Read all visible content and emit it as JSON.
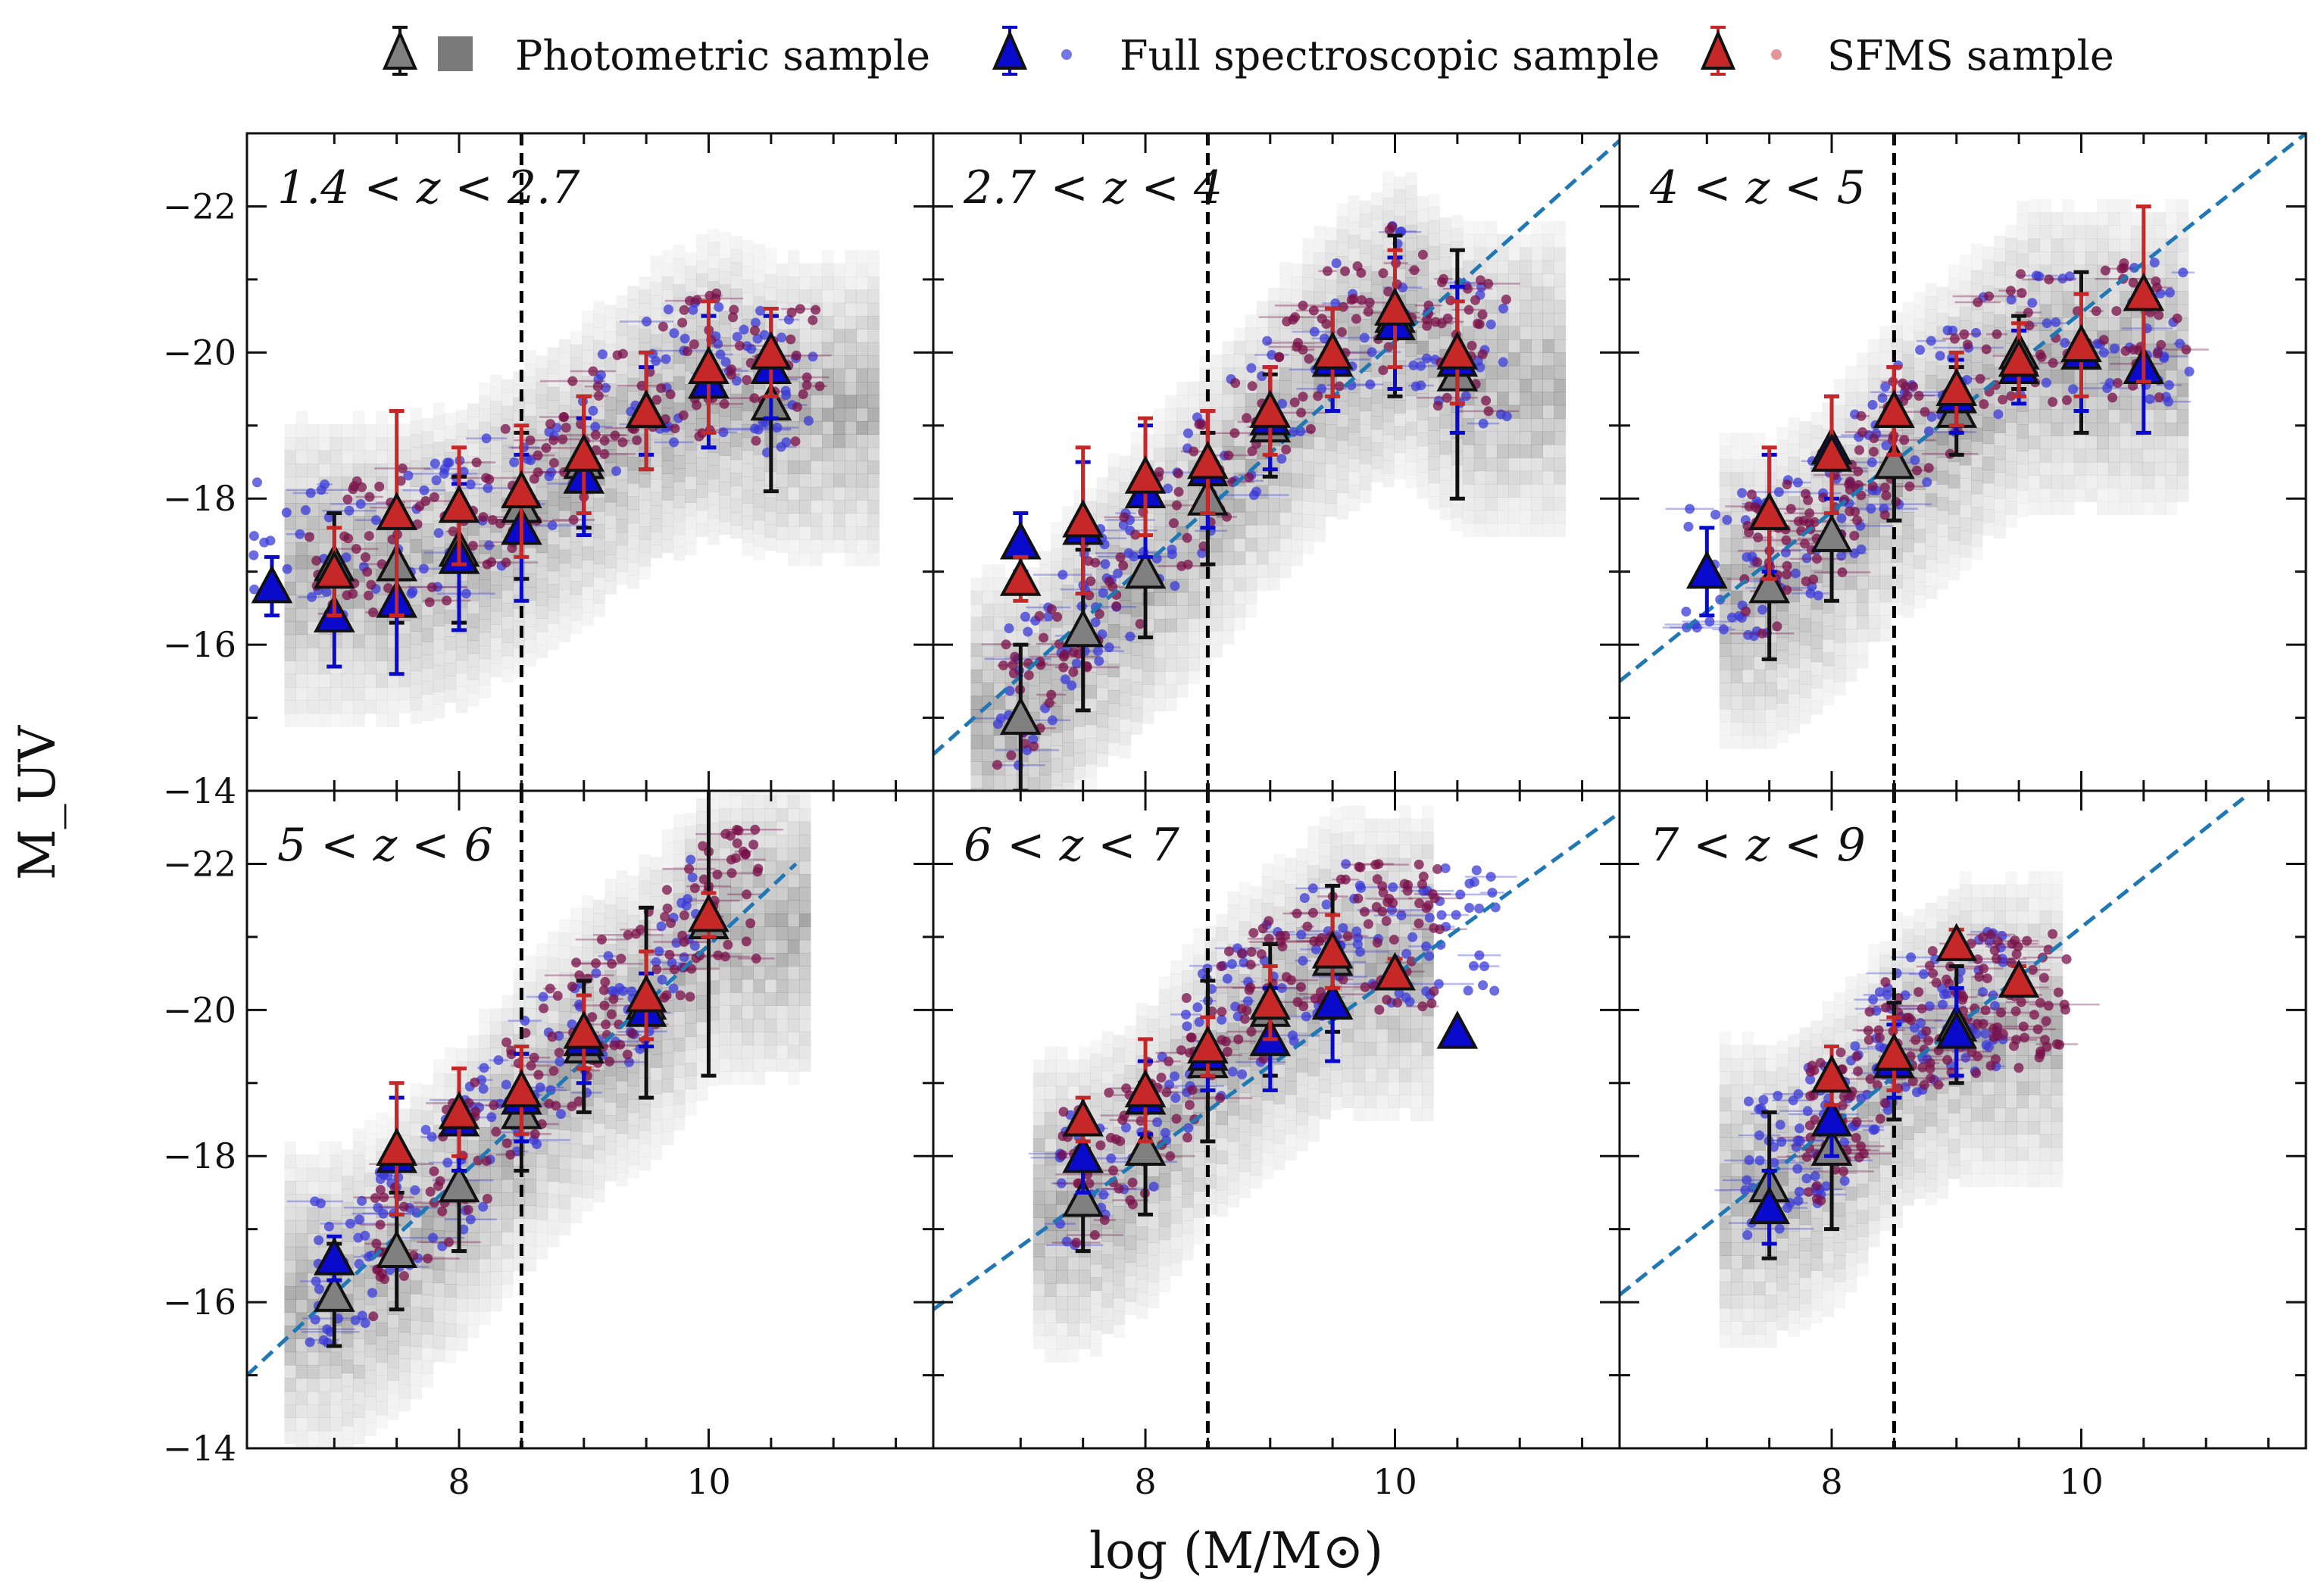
{
  "legend": [
    {
      "label": "Photometric sample",
      "color": "#808080"
    },
    {
      "label": "Full spectroscopic sample",
      "color": "#0000cc"
    },
    {
      "label": "SFMS sample",
      "color": "#c62828"
    }
  ],
  "xlabel": "log (M/M⊙)",
  "ylabel": "M_UV",
  "colors": {
    "photometric": "#808080",
    "spectroscopic": "#0a0acc",
    "sfms": "#c62828",
    "scatter_spec": "#3a3ad8",
    "scatter_sfms": "#7a1048",
    "fit": "#1f77b4",
    "cut": "#000000"
  },
  "chart_data": [
    {
      "type": "scatter",
      "title": "1.4 < z < 2.7",
      "xlim": [
        6.3,
        11.8
      ],
      "ylim": [
        -14,
        -23
      ],
      "xticks": [
        8,
        10
      ],
      "yticks": [
        -14,
        -16,
        -18,
        -20,
        -22
      ],
      "mass_cut": 8.5,
      "fit_line": null,
      "series": [
        {
          "name": "Photometric sample",
          "points": [
            [
              7.0,
              -17.1,
              0.7
            ],
            [
              7.5,
              -17.1,
              0.8
            ],
            [
              8.0,
              -17.3,
              1.0
            ],
            [
              8.5,
              -17.9,
              1.0
            ],
            [
              9.0,
              -18.5,
              0.9
            ],
            [
              9.5,
              -19.2,
              0.8
            ],
            [
              10.0,
              -19.6,
              0.9
            ],
            [
              10.5,
              -19.3,
              1.2
            ]
          ]
        },
        {
          "name": "Full spectroscopic sample",
          "points": [
            [
              6.5,
              -16.8,
              0.4
            ],
            [
              7.0,
              -16.4,
              0.7
            ],
            [
              7.5,
              -16.6,
              1.0
            ],
            [
              8.0,
              -17.2,
              1.0
            ],
            [
              8.5,
              -17.6,
              1.0
            ],
            [
              9.0,
              -18.3,
              0.8
            ],
            [
              9.5,
              -19.2,
              0.6
            ],
            [
              10.0,
              -19.6,
              0.9
            ],
            [
              10.5,
              -19.8,
              0.7
            ]
          ]
        },
        {
          "name": "SFMS sample",
          "points": [
            [
              7.0,
              -17.0,
              0.6
            ],
            [
              7.5,
              -17.8,
              1.4
            ],
            [
              8.0,
              -17.9,
              0.8
            ],
            [
              8.5,
              -18.1,
              0.9
            ],
            [
              9.0,
              -18.6,
              0.8
            ],
            [
              9.5,
              -19.2,
              0.8
            ],
            [
              10.0,
              -19.8,
              0.9
            ],
            [
              10.5,
              -20.0,
              0.6
            ]
          ]
        }
      ]
    },
    {
      "type": "scatter",
      "title": "2.7 < z < 4",
      "xlim": [
        6.3,
        11.8
      ],
      "ylim": [
        -14,
        -23
      ],
      "xticks": [
        8,
        10
      ],
      "yticks": [
        -14,
        -16,
        -18,
        -20,
        -22
      ],
      "mass_cut": 8.5,
      "fit_line": [
        [
          6.3,
          -14.5
        ],
        [
          11.8,
          -22.9
        ]
      ],
      "series": [
        {
          "name": "Photometric sample",
          "points": [
            [
              7.0,
              -15.0,
              1.0
            ],
            [
              7.5,
              -16.2,
              1.1
            ],
            [
              8.0,
              -17.0,
              0.9
            ],
            [
              8.5,
              -18.0,
              0.9
            ],
            [
              9.0,
              -19.0,
              0.7
            ],
            [
              9.5,
              -19.9,
              0.7
            ],
            [
              10.0,
              -20.5,
              1.1
            ],
            [
              10.5,
              -19.7,
              1.7
            ]
          ]
        },
        {
          "name": "Full spectroscopic sample",
          "points": [
            [
              7.0,
              -17.4,
              0.4
            ],
            [
              7.5,
              -17.6,
              0.9
            ],
            [
              8.0,
              -18.1,
              0.9
            ],
            [
              8.5,
              -18.4,
              0.8
            ],
            [
              9.0,
              -19.1,
              0.7
            ],
            [
              9.5,
              -19.9,
              0.7
            ],
            [
              10.0,
              -20.4,
              0.9
            ],
            [
              10.5,
              -19.9,
              1.0
            ]
          ]
        },
        {
          "name": "SFMS sample",
          "points": [
            [
              7.0,
              -16.9,
              0.3
            ],
            [
              7.5,
              -17.7,
              1.0
            ],
            [
              8.0,
              -18.3,
              0.8
            ],
            [
              8.5,
              -18.5,
              0.7
            ],
            [
              9.0,
              -19.2,
              0.6
            ],
            [
              9.5,
              -20.0,
              0.6
            ],
            [
              10.0,
              -20.6,
              0.8
            ],
            [
              10.5,
              -20.0,
              0.7
            ]
          ]
        }
      ]
    },
    {
      "type": "scatter",
      "title": "4 < z < 5",
      "xlim": [
        6.3,
        11.8
      ],
      "ylim": [
        -14,
        -23
      ],
      "xticks": [
        8,
        10
      ],
      "yticks": [
        -14,
        -16,
        -18,
        -20,
        -22
      ],
      "mass_cut": 8.5,
      "fit_line": [
        [
          6.3,
          -15.5
        ],
        [
          11.8,
          -23.0
        ]
      ],
      "series": [
        {
          "name": "Photometric sample",
          "points": [
            [
              7.5,
              -16.8,
              1.0
            ],
            [
              8.0,
              -17.5,
              0.9
            ],
            [
              8.5,
              -18.5,
              0.8
            ],
            [
              9.0,
              -19.2,
              0.6
            ],
            [
              9.5,
              -20.0,
              0.5
            ],
            [
              10.0,
              -20.0,
              1.1
            ]
          ]
        },
        {
          "name": "Full spectroscopic sample",
          "points": [
            [
              7.0,
              -17.0,
              0.6
            ],
            [
              7.5,
              -17.8,
              0.8
            ],
            [
              8.0,
              -18.7,
              0.7
            ],
            [
              8.5,
              -19.2,
              0.6
            ],
            [
              9.0,
              -19.4,
              0.5
            ],
            [
              9.5,
              -19.8,
              0.5
            ],
            [
              10.0,
              -20.0,
              0.8
            ],
            [
              10.5,
              -19.8,
              0.9
            ]
          ]
        },
        {
          "name": "SFMS sample",
          "points": [
            [
              7.5,
              -17.8,
              0.9
            ],
            [
              8.0,
              -18.6,
              0.8
            ],
            [
              8.5,
              -19.2,
              0.6
            ],
            [
              9.0,
              -19.5,
              0.5
            ],
            [
              9.5,
              -19.9,
              0.5
            ],
            [
              10.0,
              -20.1,
              0.7
            ],
            [
              10.5,
              -20.8,
              1.2
            ]
          ]
        }
      ]
    },
    {
      "type": "scatter",
      "title": "5 < z < 6",
      "xlim": [
        6.3,
        11.8
      ],
      "ylim": [
        -14,
        -23
      ],
      "xticks": [
        8,
        10
      ],
      "yticks": [
        -14,
        -16,
        -18,
        -20,
        -22
      ],
      "mass_cut": 8.5,
      "fit_line": [
        [
          6.3,
          -15.0
        ],
        [
          10.7,
          -22.0
        ]
      ],
      "series": [
        {
          "name": "Photometric sample",
          "points": [
            [
              7.0,
              -16.1,
              0.7
            ],
            [
              7.5,
              -16.7,
              0.8
            ],
            [
              8.0,
              -17.6,
              0.9
            ],
            [
              8.5,
              -18.6,
              0.8
            ],
            [
              9.0,
              -19.5,
              0.9
            ],
            [
              9.5,
              -20.1,
              1.3
            ],
            [
              10.0,
              -21.2,
              2.1
            ]
          ]
        },
        {
          "name": "Full spectroscopic sample",
          "points": [
            [
              7.0,
              -16.6,
              0.3
            ],
            [
              7.5,
              -18.0,
              0.8
            ],
            [
              8.0,
              -18.5,
              0.7
            ],
            [
              8.5,
              -18.8,
              0.6
            ],
            [
              9.0,
              -19.6,
              0.6
            ],
            [
              9.5,
              -20.0,
              0.5
            ]
          ]
        },
        {
          "name": "SFMS sample",
          "points": [
            [
              7.5,
              -18.1,
              0.9
            ],
            [
              8.0,
              -18.6,
              0.6
            ],
            [
              8.5,
              -18.9,
              0.6
            ],
            [
              9.0,
              -19.7,
              0.5
            ],
            [
              9.5,
              -20.2,
              0.6
            ],
            [
              10.0,
              -21.3,
              0.3
            ]
          ]
        }
      ]
    },
    {
      "type": "scatter",
      "title": "6 < z < 7",
      "xlim": [
        6.3,
        11.8
      ],
      "ylim": [
        -14,
        -23
      ],
      "xticks": [
        8,
        10
      ],
      "yticks": [
        -14,
        -16,
        -18,
        -20,
        -22
      ],
      "mass_cut": 8.5,
      "fit_line": [
        [
          6.3,
          -15.9
        ],
        [
          11.8,
          -22.7
        ]
      ],
      "series": [
        {
          "name": "Photometric sample",
          "points": [
            [
              7.5,
              -17.4,
              0.7
            ],
            [
              8.0,
              -18.1,
              0.9
            ],
            [
              8.5,
              -19.3,
              1.1
            ],
            [
              9.0,
              -20.0,
              0.9
            ],
            [
              9.5,
              -20.7,
              1.0
            ]
          ]
        },
        {
          "name": "Full spectroscopic sample",
          "points": [
            [
              7.5,
              -18.0,
              0.5
            ],
            [
              8.0,
              -18.8,
              0.5
            ],
            [
              8.5,
              -19.4,
              0.5
            ],
            [
              9.0,
              -19.6,
              0.7
            ],
            [
              9.5,
              -20.1,
              0.8
            ],
            [
              10.5,
              -19.7,
              0.0
            ]
          ]
        },
        {
          "name": "SFMS sample",
          "points": [
            [
              7.5,
              -18.5,
              0.3
            ],
            [
              8.0,
              -18.9,
              0.7
            ],
            [
              8.5,
              -19.5,
              0.4
            ],
            [
              9.0,
              -20.1,
              0.5
            ],
            [
              9.5,
              -20.8,
              0.5
            ],
            [
              10.0,
              -20.5,
              0.2
            ]
          ]
        }
      ]
    },
    {
      "type": "scatter",
      "title": "7 < z < 9",
      "xlim": [
        6.3,
        11.8
      ],
      "ylim": [
        -14,
        -23
      ],
      "xticks": [
        8,
        10
      ],
      "yticks": [
        -14,
        -16,
        -18,
        -20,
        -22
      ],
      "mass_cut": 8.5,
      "fit_line": [
        [
          6.3,
          -16.1
        ],
        [
          11.3,
          -22.9
        ]
      ],
      "series": [
        {
          "name": "Photometric sample",
          "points": [
            [
              7.5,
              -17.6,
              1.0
            ],
            [
              8.0,
              -18.1,
              1.1
            ],
            [
              8.5,
              -19.3,
              0.8
            ],
            [
              9.0,
              -19.8,
              0.8
            ]
          ]
        },
        {
          "name": "Full spectroscopic sample",
          "points": [
            [
              7.5,
              -17.3,
              0.5
            ],
            [
              8.0,
              -18.5,
              0.5
            ],
            [
              8.5,
              -19.3,
              0.5
            ],
            [
              9.0,
              -19.7,
              0.6
            ]
          ]
        },
        {
          "name": "SFMS sample",
          "points": [
            [
              8.0,
              -19.1,
              0.4
            ],
            [
              8.5,
              -19.4,
              0.5
            ],
            [
              9.0,
              -20.9,
              0.2
            ],
            [
              9.5,
              -20.4,
              0.2
            ]
          ]
        }
      ]
    }
  ]
}
